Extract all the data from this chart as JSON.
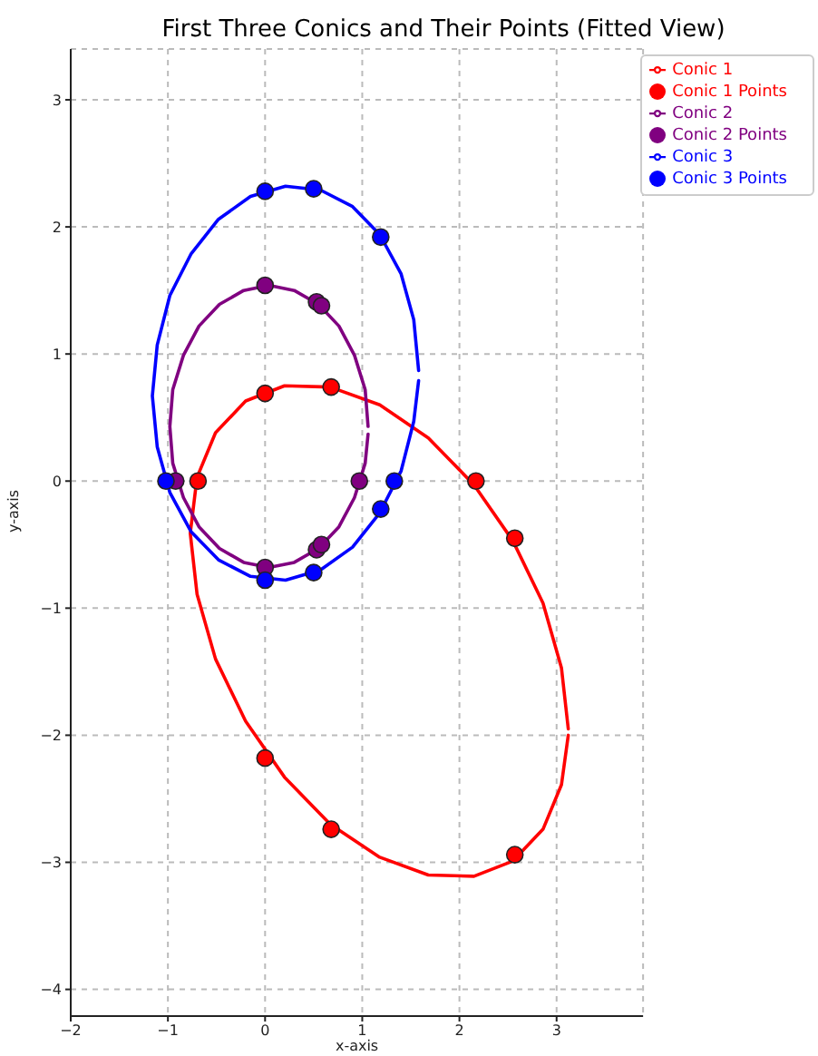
{
  "chart_data": {
    "type": "line",
    "title": "First Three Conics and Their Points (Fitted View)",
    "xlabel": "x-axis",
    "ylabel": "y-axis",
    "xlim": [
      -2,
      3.89
    ],
    "ylim": [
      -4.21,
      3.4
    ],
    "xticks": [
      -2,
      -1,
      0,
      1,
      2,
      3
    ],
    "yticks": [
      -4,
      -3,
      -2,
      -1,
      0,
      1,
      2,
      3
    ],
    "grid": true,
    "legend": "top right",
    "line_style": "solid",
    "series": [
      {
        "name": "Conic 1",
        "color": "#ff0000",
        "x": [
          3.12,
          3.05,
          2.86,
          2.55,
          2.15,
          1.68,
          1.18,
          0.67,
          0.2,
          -0.2,
          -0.51,
          -0.7,
          -0.77,
          -0.7,
          -0.51,
          -0.2,
          0.2,
          0.67,
          1.18,
          1.68,
          2.15,
          2.55,
          2.86,
          3.05,
          3.12
        ],
        "values": [
          -1.95,
          -1.47,
          -0.96,
          -0.47,
          -0.03,
          0.34,
          0.6,
          0.74,
          0.75,
          0.63,
          0.38,
          0.03,
          -0.41,
          -0.89,
          -1.4,
          -1.89,
          -2.33,
          -2.7,
          -2.96,
          -3.1,
          -3.11,
          -2.99,
          -2.74,
          -2.39,
          -2.0
        ]
      },
      {
        "name": "Conic 1 Points",
        "type": "scatter",
        "marker": "circle",
        "color": "#ff0000",
        "x": [
          0,
          0.68,
          -0.69,
          2.17,
          2.57,
          0,
          0.68,
          2.57
        ],
        "values": [
          0.69,
          0.74,
          0,
          0,
          -0.45,
          -2.18,
          -2.74,
          -2.94
        ]
      },
      {
        "name": "Conic 2",
        "color": "#800080",
        "x": [
          1.06,
          1.03,
          0.92,
          0.76,
          0.55,
          0.3,
          0.04,
          -0.22,
          -0.47,
          -0.68,
          -0.84,
          -0.95,
          -0.98,
          -0.95,
          -0.84,
          -0.68,
          -0.47,
          -0.22,
          0.04,
          0.3,
          0.55,
          0.76,
          0.92,
          1.03,
          1.06
        ],
        "values": [
          0.43,
          0.72,
          0.99,
          1.22,
          1.39,
          1.5,
          1.54,
          1.5,
          1.39,
          1.22,
          0.99,
          0.72,
          0.43,
          0.14,
          -0.13,
          -0.36,
          -0.53,
          -0.64,
          -0.68,
          -0.64,
          -0.53,
          -0.36,
          -0.13,
          0.14,
          0.37
        ]
      },
      {
        "name": "Conic 2 Points",
        "type": "scatter",
        "marker": "circle",
        "color": "#800080",
        "x": [
          0,
          0.53,
          0.58,
          -0.92,
          0.97,
          0,
          0.53,
          0.58
        ],
        "values": [
          1.54,
          1.41,
          1.38,
          0,
          0,
          -0.68,
          -0.54,
          -0.5
        ]
      },
      {
        "name": "Conic 3",
        "color": "#0000ff",
        "x": [
          1.58,
          1.53,
          1.4,
          1.18,
          0.9,
          0.57,
          0.21,
          -0.15,
          -0.48,
          -0.76,
          -0.98,
          -1.11,
          -1.16,
          -1.11,
          -0.98,
          -0.76,
          -0.48,
          -0.15,
          0.21,
          0.57,
          0.9,
          1.18,
          1.4,
          1.53,
          1.58
        ],
        "values": [
          0.87,
          1.27,
          1.63,
          1.94,
          2.16,
          2.29,
          2.32,
          2.24,
          2.06,
          1.79,
          1.46,
          1.07,
          0.67,
          0.27,
          -0.09,
          -0.4,
          -0.62,
          -0.75,
          -0.78,
          -0.7,
          -0.52,
          -0.25,
          0.08,
          0.47,
          0.79
        ]
      },
      {
        "name": "Conic 3 Points",
        "type": "scatter",
        "marker": "circle",
        "color": "#0000ff",
        "x": [
          0,
          0.5,
          1.19,
          -1.02,
          1.33,
          1.19,
          0.5,
          0
        ],
        "values": [
          2.28,
          2.3,
          1.92,
          0,
          0,
          -0.22,
          -0.72,
          -0.78
        ]
      }
    ]
  }
}
